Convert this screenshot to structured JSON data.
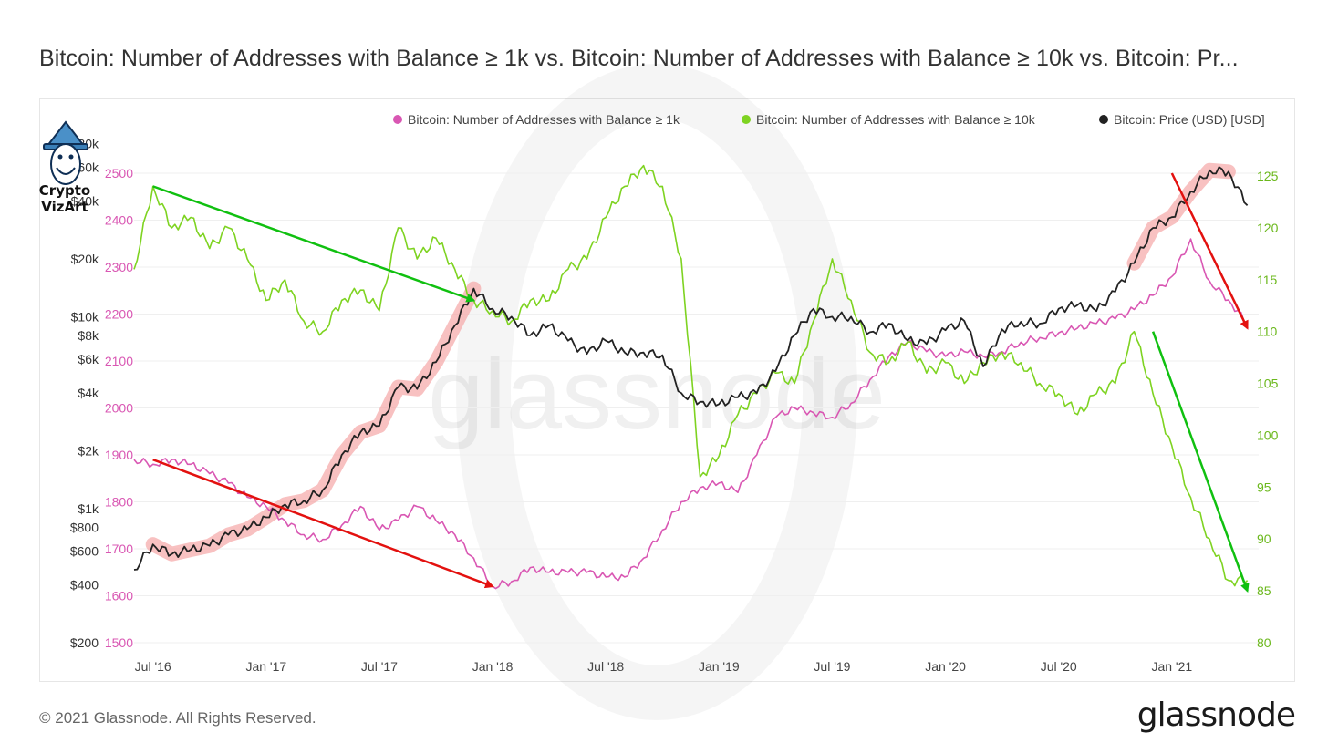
{
  "title": "Bitcoin: Number of Addresses with Balance ≥ 1k vs. Bitcoin: Number of Addresses with Balance ≥ 10k vs. Bitcoin: Pr...",
  "footer": {
    "copyright": "© 2021 Glassnode. All Rights Reserved.",
    "brand": "glassnode"
  },
  "logo": {
    "line1": "Crypto",
    "line2": "VizArt"
  },
  "watermark": "glassnode",
  "colors": {
    "addr1k": "#d957b3",
    "addr10k": "#7ed321",
    "price": "#222222",
    "arrow_red": "#e3110f",
    "arrow_green": "#10c010",
    "highlight": "#f4a0a0"
  },
  "chart_data": {
    "type": "line",
    "x_tick_labels": [
      "Jul '16",
      "Jan '17",
      "Jul '17",
      "Jan '18",
      "Jul '18",
      "Jan '19",
      "Jul '19",
      "Jan '20",
      "Jul '20",
      "Jan '21"
    ],
    "left_price_axis": {
      "scale": "log",
      "tick_labels": [
        "$200",
        "$400",
        "$600",
        "$800",
        "$1k",
        "$2k",
        "$4k",
        "$6k",
        "$8k",
        "$10k",
        "$20k",
        "$40k",
        "$60k",
        "$80k"
      ]
    },
    "left_count_axis": {
      "range": [
        1500,
        2500
      ],
      "tick_labels": [
        "1500",
        "1600",
        "1700",
        "1800",
        "1900",
        "2000",
        "2100",
        "2200",
        "2300",
        "2400",
        "2500"
      ]
    },
    "right_axis": {
      "range": [
        80,
        125
      ],
      "tick_labels": [
        "80",
        "85",
        "90",
        "95",
        "100",
        "105",
        "110",
        "115",
        "120",
        "125"
      ]
    },
    "legend_position": "top-right",
    "series": [
      {
        "name": "Bitcoin: Number of Addresses with Balance ≥ 1k",
        "axis": "left_count",
        "points": [
          [
            "2016-06",
            1890
          ],
          [
            "2016-07",
            1880
          ],
          [
            "2016-08",
            1890
          ],
          [
            "2016-09",
            1880
          ],
          [
            "2016-10",
            1860
          ],
          [
            "2016-11",
            1840
          ],
          [
            "2016-12",
            1810
          ],
          [
            "2017-01",
            1790
          ],
          [
            "2017-02",
            1760
          ],
          [
            "2017-03",
            1730
          ],
          [
            "2017-04",
            1720
          ],
          [
            "2017-05",
            1750
          ],
          [
            "2017-06",
            1790
          ],
          [
            "2017-07",
            1740
          ],
          [
            "2017-08",
            1760
          ],
          [
            "2017-09",
            1790
          ],
          [
            "2017-10",
            1760
          ],
          [
            "2017-11",
            1730
          ],
          [
            "2017-12",
            1680
          ],
          [
            "2018-01",
            1620
          ],
          [
            "2018-02",
            1630
          ],
          [
            "2018-03",
            1660
          ],
          [
            "2018-04",
            1650
          ],
          [
            "2018-05",
            1650
          ],
          [
            "2018-06",
            1650
          ],
          [
            "2018-07",
            1640
          ],
          [
            "2018-08",
            1640
          ],
          [
            "2018-09",
            1680
          ],
          [
            "2018-10",
            1740
          ],
          [
            "2018-11",
            1800
          ],
          [
            "2018-12",
            1830
          ],
          [
            "2019-01",
            1840
          ],
          [
            "2019-02",
            1820
          ],
          [
            "2019-03",
            1900
          ],
          [
            "2019-04",
            1980
          ],
          [
            "2019-05",
            2000
          ],
          [
            "2019-06",
            1990
          ],
          [
            "2019-07",
            1980
          ],
          [
            "2019-08",
            2010
          ],
          [
            "2019-09",
            2060
          ],
          [
            "2019-10",
            2110
          ],
          [
            "2019-11",
            2140
          ],
          [
            "2019-12",
            2120
          ],
          [
            "2020-01",
            2110
          ],
          [
            "2020-02",
            2120
          ],
          [
            "2020-03",
            2110
          ],
          [
            "2020-04",
            2120
          ],
          [
            "2020-05",
            2140
          ],
          [
            "2020-06",
            2150
          ],
          [
            "2020-07",
            2160
          ],
          [
            "2020-08",
            2170
          ],
          [
            "2020-09",
            2180
          ],
          [
            "2020-10",
            2190
          ],
          [
            "2020-11",
            2210
          ],
          [
            "2020-12",
            2240
          ],
          [
            "2021-01",
            2280
          ],
          [
            "2021-02",
            2360
          ],
          [
            "2021-03",
            2270
          ],
          [
            "2021-04",
            2230
          ],
          [
            "2021-05",
            2180
          ]
        ]
      },
      {
        "name": "Bitcoin: Number of Addresses with Balance ≥ 10k",
        "axis": "right",
        "points": [
          [
            "2016-06",
            116
          ],
          [
            "2016-07",
            124
          ],
          [
            "2016-08",
            120
          ],
          [
            "2016-09",
            121
          ],
          [
            "2016-10",
            118
          ],
          [
            "2016-11",
            120
          ],
          [
            "2016-12",
            117
          ],
          [
            "2017-01",
            113
          ],
          [
            "2017-02",
            115
          ],
          [
            "2017-03",
            111
          ],
          [
            "2017-04",
            110
          ],
          [
            "2017-05",
            113
          ],
          [
            "2017-06",
            114
          ],
          [
            "2017-07",
            112
          ],
          [
            "2017-08",
            120
          ],
          [
            "2017-09",
            117
          ],
          [
            "2017-10",
            119
          ],
          [
            "2017-11",
            116
          ],
          [
            "2017-12",
            113
          ],
          [
            "2018-01",
            112
          ],
          [
            "2018-02",
            111
          ],
          [
            "2018-03",
            113
          ],
          [
            "2018-04",
            113
          ],
          [
            "2018-05",
            116
          ],
          [
            "2018-06",
            117
          ],
          [
            "2018-07",
            121
          ],
          [
            "2018-08",
            124
          ],
          [
            "2018-09",
            126
          ],
          [
            "2018-10",
            124
          ],
          [
            "2018-11",
            117
          ],
          [
            "2018-12",
            96
          ],
          [
            "2019-01",
            98
          ],
          [
            "2019-02",
            102
          ],
          [
            "2019-03",
            104
          ],
          [
            "2019-04",
            106
          ],
          [
            "2019-05",
            105
          ],
          [
            "2019-06",
            111
          ],
          [
            "2019-07",
            117
          ],
          [
            "2019-08",
            113
          ],
          [
            "2019-09",
            108
          ],
          [
            "2019-10",
            107
          ],
          [
            "2019-11",
            109
          ],
          [
            "2019-12",
            106
          ],
          [
            "2020-01",
            107
          ],
          [
            "2020-02",
            105
          ],
          [
            "2020-03",
            107
          ],
          [
            "2020-04",
            108
          ],
          [
            "2020-05",
            107
          ],
          [
            "2020-06",
            105
          ],
          [
            "2020-07",
            104
          ],
          [
            "2020-08",
            102
          ],
          [
            "2020-09",
            104
          ],
          [
            "2020-10",
            105
          ],
          [
            "2020-11",
            110
          ],
          [
            "2020-12",
            104
          ],
          [
            "2021-01",
            99
          ],
          [
            "2021-02",
            94
          ],
          [
            "2021-03",
            90
          ],
          [
            "2021-04",
            86
          ],
          [
            "2021-05",
            86
          ]
        ]
      },
      {
        "name": "Bitcoin: Price (USD) [USD]",
        "axis": "left_price",
        "points": [
          [
            "2016-06",
            480
          ],
          [
            "2016-07",
            650
          ],
          [
            "2016-08",
            580
          ],
          [
            "2016-09",
            610
          ],
          [
            "2016-10",
            640
          ],
          [
            "2016-11",
            730
          ],
          [
            "2016-12",
            780
          ],
          [
            "2017-01",
            900
          ],
          [
            "2017-02",
            1050
          ],
          [
            "2017-03",
            1100
          ],
          [
            "2017-04",
            1250
          ],
          [
            "2017-05",
            1900
          ],
          [
            "2017-06",
            2500
          ],
          [
            "2017-07",
            2700
          ],
          [
            "2017-08",
            4300
          ],
          [
            "2017-09",
            4200
          ],
          [
            "2017-10",
            5800
          ],
          [
            "2017-11",
            9000
          ],
          [
            "2017-12",
            14000
          ],
          [
            "2018-01",
            11000
          ],
          [
            "2018-02",
            10000
          ],
          [
            "2018-03",
            8000
          ],
          [
            "2018-04",
            9000
          ],
          [
            "2018-05",
            7500
          ],
          [
            "2018-06",
            6400
          ],
          [
            "2018-07",
            7500
          ],
          [
            "2018-08",
            6500
          ],
          [
            "2018-09",
            6500
          ],
          [
            "2018-10",
            6300
          ],
          [
            "2018-11",
            4000
          ],
          [
            "2018-12",
            3600
          ],
          [
            "2019-01",
            3500
          ],
          [
            "2019-02",
            3800
          ],
          [
            "2019-03",
            4000
          ],
          [
            "2019-04",
            5200
          ],
          [
            "2019-05",
            8000
          ],
          [
            "2019-06",
            11000
          ],
          [
            "2019-07",
            10000
          ],
          [
            "2019-08",
            10000
          ],
          [
            "2019-09",
            8300
          ],
          [
            "2019-10",
            9200
          ],
          [
            "2019-11",
            7500
          ],
          [
            "2019-12",
            7200
          ],
          [
            "2020-01",
            8500
          ],
          [
            "2020-02",
            9500
          ],
          [
            "2020-03",
            5500
          ],
          [
            "2020-04",
            8600
          ],
          [
            "2020-05",
            9400
          ],
          [
            "2020-06",
            9200
          ],
          [
            "2020-07",
            11000
          ],
          [
            "2020-08",
            11500
          ],
          [
            "2020-09",
            10700
          ],
          [
            "2020-10",
            13500
          ],
          [
            "2020-11",
            19000
          ],
          [
            "2020-12",
            29000
          ],
          [
            "2021-01",
            33000
          ],
          [
            "2021-02",
            45000
          ],
          [
            "2021-03",
            58000
          ],
          [
            "2021-04",
            57000
          ],
          [
            "2021-05",
            38000
          ]
        ]
      }
    ],
    "annotations": [
      {
        "type": "arrow",
        "color": "green",
        "from": [
          "2016-07",
          124
        ],
        "to": [
          "2017-12",
          113
        ],
        "axis": "right"
      },
      {
        "type": "arrow",
        "color": "red",
        "from": [
          "2016-07",
          1890
        ],
        "to": [
          "2018-01",
          1620
        ],
        "axis": "left_count"
      },
      {
        "type": "arrow",
        "color": "red",
        "from": [
          "2021-01",
          2500
        ],
        "to": [
          "2021-05",
          2170
        ],
        "axis": "left_count"
      },
      {
        "type": "arrow",
        "color": "green",
        "from": [
          "2020-12",
          110
        ],
        "to": [
          "2021-05",
          85
        ],
        "axis": "right"
      },
      {
        "type": "highlight_band",
        "color": "pink",
        "from": "2016-07",
        "to": "2017-12",
        "follows": "price"
      },
      {
        "type": "highlight_band",
        "color": "pink",
        "from": "2020-11",
        "to": "2021-04",
        "follows": "price"
      }
    ]
  }
}
